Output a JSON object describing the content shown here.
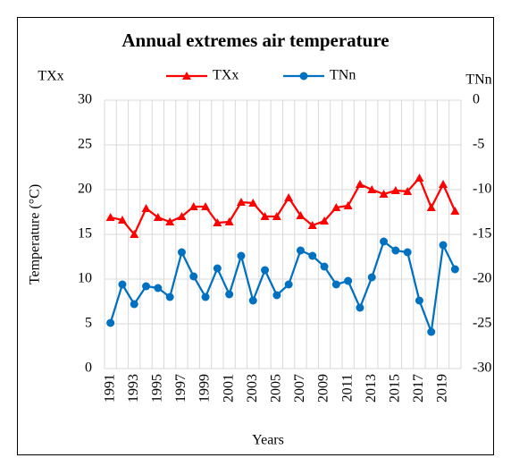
{
  "chart_data": {
    "type": "line",
    "title": "Annual extremes air temperature",
    "y_label": "Temperature (°C)",
    "y_top_label": "TXx",
    "y2_top_label": "TNn",
    "x_label": "Years",
    "categories": [
      "1991",
      null,
      "1993",
      null,
      "1995",
      null,
      "1997",
      null,
      "1999",
      null,
      "2001",
      null,
      "2003",
      null,
      "2005",
      null,
      "2007",
      null,
      "2009",
      null,
      "2011",
      null,
      "2013",
      null,
      "2015",
      null,
      "2017",
      null,
      "2019",
      null
    ],
    "series": [
      {
        "name": "TXx",
        "color": "#ff0000",
        "marker": "triangle",
        "axis": "y",
        "values": [
          16.9,
          16.6,
          15.0,
          17.9,
          16.9,
          16.4,
          17.0,
          18.1,
          18.1,
          16.3,
          16.4,
          18.6,
          18.5,
          17.0,
          17.0,
          19.1,
          17.1,
          16.0,
          16.5,
          18.0,
          18.2,
          20.6,
          20.0,
          19.5,
          19.9,
          19.8,
          21.3,
          18.0,
          20.6,
          17.6
        ]
      },
      {
        "name": "TNn",
        "color": "#0070c0",
        "marker": "circle",
        "axis": "y2",
        "values": [
          -24.9,
          -20.6,
          -22.8,
          -20.8,
          -21.0,
          -22.0,
          -17.0,
          -19.7,
          -22.0,
          -18.8,
          -21.7,
          -17.4,
          -22.4,
          -19.0,
          -21.8,
          -20.6,
          -16.8,
          -17.4,
          -18.6,
          -20.6,
          -20.2,
          -23.2,
          -19.8,
          -15.8,
          -16.8,
          -17.0,
          -22.4,
          -25.9,
          -16.2,
          -18.9
        ]
      }
    ],
    "ylim": [
      0,
      30
    ],
    "yticks": [
      0,
      5,
      10,
      15,
      20,
      25,
      30
    ],
    "y2lim": [
      -30,
      0
    ],
    "y2ticks": [
      -30,
      -25,
      -20,
      -15,
      -10,
      -5,
      0
    ],
    "grid": true
  }
}
